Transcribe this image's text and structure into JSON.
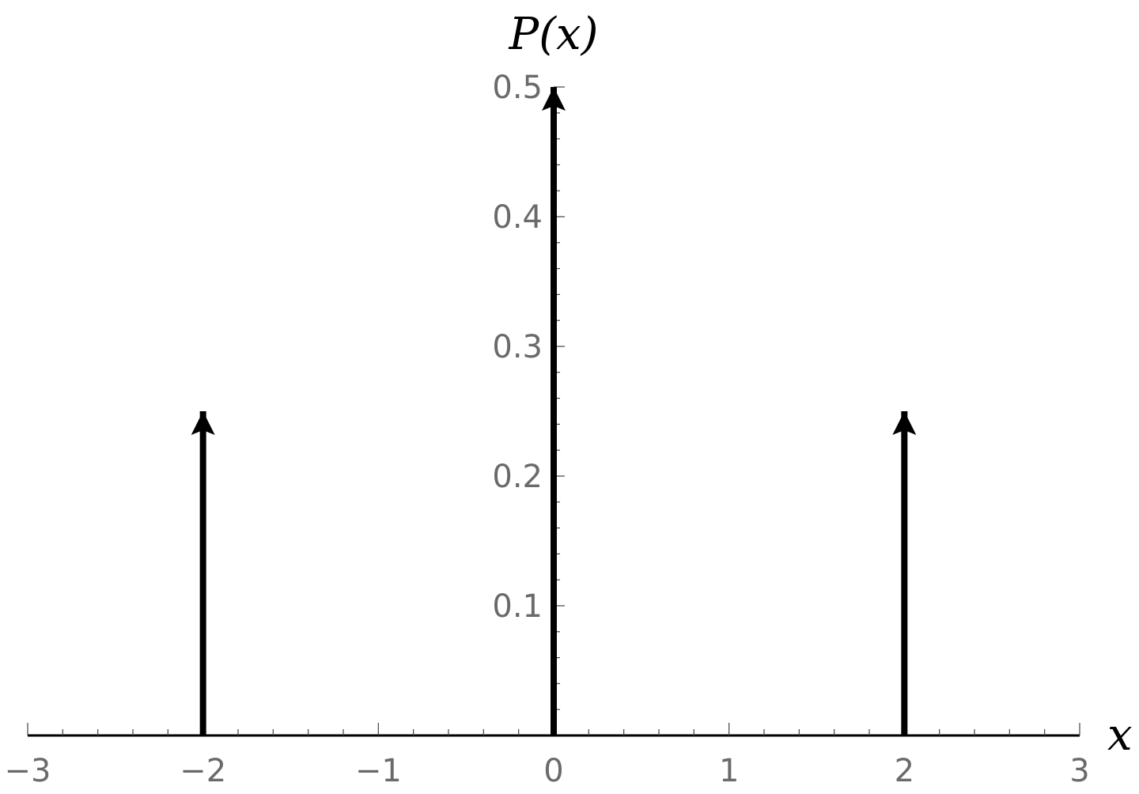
{
  "chart_data": {
    "type": "stem",
    "points": [
      {
        "x": -2,
        "y": 0.25
      },
      {
        "x": 0,
        "y": 0.5
      },
      {
        "x": 2,
        "y": 0.25
      }
    ],
    "xlabel": "x",
    "ylabel": "P(x)",
    "xlim": [
      -3,
      3
    ],
    "ylim": [
      0,
      0.5
    ],
    "x_ticks": [
      {
        "value": -3,
        "label": "−3"
      },
      {
        "value": -2,
        "label": "−2"
      },
      {
        "value": -1,
        "label": "−1"
      },
      {
        "value": 0,
        "label": "0"
      },
      {
        "value": 1,
        "label": "1"
      },
      {
        "value": 2,
        "label": "2"
      },
      {
        "value": 3,
        "label": "3"
      }
    ],
    "y_ticks": [
      {
        "value": 0.1,
        "label": "0.1"
      },
      {
        "value": 0.2,
        "label": "0.2"
      },
      {
        "value": 0.3,
        "label": "0.3"
      },
      {
        "value": 0.4,
        "label": "0.4"
      },
      {
        "value": 0.5,
        "label": "0.5"
      }
    ],
    "grid": false,
    "legend": "none",
    "arrow_color": "#000000",
    "tick_label_color": "#6a6a6a"
  }
}
